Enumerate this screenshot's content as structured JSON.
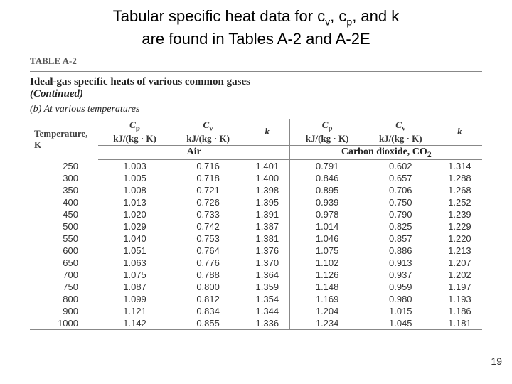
{
  "title": {
    "line1_pre": "Tabular specific heat data for c",
    "sub1": "v",
    "mid1": ", c",
    "sub2": "p",
    "mid2": ", and k",
    "line2": "are found in Tables A-2 and A-2E"
  },
  "table": {
    "label": "TABLE A-2",
    "caption_main": "Ideal-gas specific heats of various common gases",
    "caption_cont": "(Continued)",
    "subcaption": "(b) At various temperatures",
    "temp_header_line1": "Temperature,",
    "temp_header_line2": "K",
    "col_cp_sym": "C",
    "col_cp_sub": "p",
    "col_cv_sym": "C",
    "col_cv_sub": "v",
    "col_k": "k",
    "unit": "kJ/(kg · K)",
    "gas1": "Air",
    "gas2_name": "Carbon dioxide, CO",
    "gas2_sub": "2",
    "rows": [
      {
        "t": "250",
        "a_cp": "1.003",
        "a_cv": "0.716",
        "a_k": "1.401",
        "b_cp": "0.791",
        "b_cv": "0.602",
        "b_k": "1.314"
      },
      {
        "t": "300",
        "a_cp": "1.005",
        "a_cv": "0.718",
        "a_k": "1.400",
        "b_cp": "0.846",
        "b_cv": "0.657",
        "b_k": "1.288"
      },
      {
        "t": "350",
        "a_cp": "1.008",
        "a_cv": "0.721",
        "a_k": "1.398",
        "b_cp": "0.895",
        "b_cv": "0.706",
        "b_k": "1.268"
      },
      {
        "t": "400",
        "a_cp": "1.013",
        "a_cv": "0.726",
        "a_k": "1.395",
        "b_cp": "0.939",
        "b_cv": "0.750",
        "b_k": "1.252"
      },
      {
        "t": "450",
        "a_cp": "1.020",
        "a_cv": "0.733",
        "a_k": "1.391",
        "b_cp": "0.978",
        "b_cv": "0.790",
        "b_k": "1.239"
      },
      {
        "t": "500",
        "a_cp": "1.029",
        "a_cv": "0.742",
        "a_k": "1.387",
        "b_cp": "1.014",
        "b_cv": "0.825",
        "b_k": "1.229"
      },
      {
        "t": "550",
        "a_cp": "1.040",
        "a_cv": "0.753",
        "a_k": "1.381",
        "b_cp": "1.046",
        "b_cv": "0.857",
        "b_k": "1.220"
      },
      {
        "t": "600",
        "a_cp": "1.051",
        "a_cv": "0.764",
        "a_k": "1.376",
        "b_cp": "1.075",
        "b_cv": "0.886",
        "b_k": "1.213"
      },
      {
        "t": "650",
        "a_cp": "1.063",
        "a_cv": "0.776",
        "a_k": "1.370",
        "b_cp": "1.102",
        "b_cv": "0.913",
        "b_k": "1.207"
      },
      {
        "t": "700",
        "a_cp": "1.075",
        "a_cv": "0.788",
        "a_k": "1.364",
        "b_cp": "1.126",
        "b_cv": "0.937",
        "b_k": "1.202"
      },
      {
        "t": "750",
        "a_cp": "1.087",
        "a_cv": "0.800",
        "a_k": "1.359",
        "b_cp": "1.148",
        "b_cv": "0.959",
        "b_k": "1.197"
      },
      {
        "t": "800",
        "a_cp": "1.099",
        "a_cv": "0.812",
        "a_k": "1.354",
        "b_cp": "1.169",
        "b_cv": "0.980",
        "b_k": "1.193"
      },
      {
        "t": "900",
        "a_cp": "1.121",
        "a_cv": "0.834",
        "a_k": "1.344",
        "b_cp": "1.204",
        "b_cv": "1.015",
        "b_k": "1.186"
      },
      {
        "t": "1000",
        "a_cp": "1.142",
        "a_cv": "0.855",
        "a_k": "1.336",
        "b_cp": "1.234",
        "b_cv": "1.045",
        "b_k": "1.181"
      }
    ]
  },
  "page_number": "19"
}
